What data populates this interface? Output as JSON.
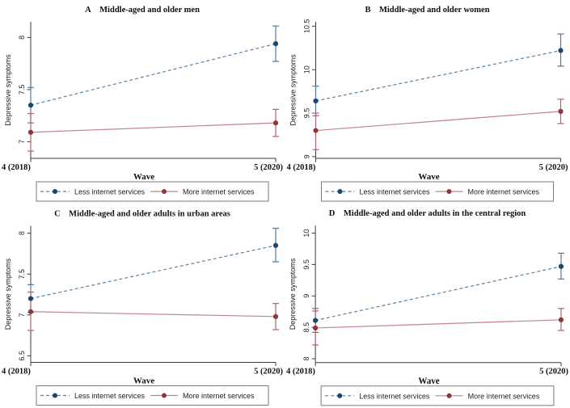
{
  "figure": {
    "background": "#ffffff",
    "legend_labels": [
      "Less internet services",
      "More internet services"
    ],
    "colors": {
      "less_marker": "#1a476f",
      "less_line": "#5d82a1",
      "less_ci": "#54789a",
      "more_marker": "#90353b",
      "more_line": "#c2848b",
      "more_ci": "#b4626d",
      "axis": "#3c3c3c"
    }
  },
  "chart_data": [
    {
      "type": "line",
      "panel_label": "A",
      "title": "Middle-aged and older men",
      "xlabel": "Wave",
      "ylabel": "Depressive symptoms",
      "x": [
        "4 (2018)",
        "5 (2020)"
      ],
      "ylim": [
        6.84,
        8.15
      ],
      "yticks": [
        7,
        7.5,
        8
      ],
      "grid": false,
      "legend_position": "bottom",
      "series": [
        {
          "name": "Less internet services",
          "style": "dashed",
          "marker_color": "#1a476f",
          "line_color": "#5d82a1",
          "ci_color": "#54789a",
          "values": [
            7.35,
            7.94
          ],
          "ci_low": [
            7.18,
            7.77
          ],
          "ci_high": [
            7.52,
            8.11
          ]
        },
        {
          "name": "More internet services",
          "style": "solid",
          "marker_color": "#90353b",
          "line_color": "#c2848b",
          "ci_color": "#b4626d",
          "values": [
            7.09,
            7.18
          ],
          "ci_low": [
            6.91,
            7.05
          ],
          "ci_high": [
            7.27,
            7.31
          ]
        }
      ]
    },
    {
      "type": "line",
      "panel_label": "B",
      "title": "Middle-aged and older women",
      "xlabel": "Wave",
      "ylabel": "Depressive symptoms",
      "x": [
        "4 (2018)",
        "5 (2020)"
      ],
      "ylim": [
        8.98,
        10.55
      ],
      "yticks": [
        9,
        9.5,
        10,
        10.5
      ],
      "grid": false,
      "legend_position": "bottom",
      "series": [
        {
          "name": "Less internet services",
          "style": "dashed",
          "marker_color": "#1a476f",
          "line_color": "#5d82a1",
          "ci_color": "#54789a",
          "values": [
            9.64,
            10.22
          ],
          "ci_low": [
            9.47,
            10.04
          ],
          "ci_high": [
            9.81,
            10.41
          ]
        },
        {
          "name": "More internet services",
          "style": "solid",
          "marker_color": "#90353b",
          "line_color": "#c2848b",
          "ci_color": "#b4626d",
          "values": [
            9.3,
            9.52
          ],
          "ci_low": [
            9.08,
            9.38
          ],
          "ci_high": [
            9.5,
            9.66
          ]
        }
      ]
    },
    {
      "type": "line",
      "panel_label": "C",
      "title": "Middle-aged and older adults in urban areas",
      "xlabel": "Wave",
      "ylabel": "Depressive symptoms",
      "x": [
        "4 (2018)",
        "5 (2020)"
      ],
      "ylim": [
        6.42,
        8.09
      ],
      "yticks": [
        6.5,
        7,
        7.5,
        8
      ],
      "grid": false,
      "legend_position": "bottom",
      "series": [
        {
          "name": "Less internet services",
          "style": "dashed",
          "marker_color": "#1a476f",
          "line_color": "#5d82a1",
          "ci_color": "#54789a",
          "values": [
            7.2,
            7.85
          ],
          "ci_low": [
            7.03,
            7.65
          ],
          "ci_high": [
            7.37,
            8.06
          ]
        },
        {
          "name": "More internet services",
          "style": "solid",
          "marker_color": "#90353b",
          "line_color": "#c2848b",
          "ci_color": "#b4626d",
          "values": [
            7.04,
            6.98
          ],
          "ci_low": [
            6.81,
            6.82
          ],
          "ci_high": [
            7.28,
            7.14
          ]
        }
      ]
    },
    {
      "type": "line",
      "panel_label": "D",
      "title": "Middle-aged and older adults in the central region",
      "xlabel": "Wave",
      "ylabel": "Depressive symptoms",
      "x": [
        "4 (2018)",
        "5 (2020)"
      ],
      "ylim": [
        7.94,
        10.12
      ],
      "yticks": [
        8,
        8.5,
        9,
        9.5,
        10
      ],
      "grid": false,
      "legend_position": "bottom",
      "series": [
        {
          "name": "Less internet services",
          "style": "dashed",
          "marker_color": "#1a476f",
          "line_color": "#5d82a1",
          "ci_color": "#54789a",
          "values": [
            8.61,
            9.47
          ],
          "ci_low": [
            8.42,
            9.27
          ],
          "ci_high": [
            8.8,
            9.68
          ]
        },
        {
          "name": "More internet services",
          "style": "solid",
          "marker_color": "#90353b",
          "line_color": "#c2848b",
          "ci_color": "#b4626d",
          "values": [
            8.49,
            8.62
          ],
          "ci_low": [
            8.22,
            8.45
          ],
          "ci_high": [
            8.76,
            8.8
          ]
        }
      ]
    }
  ]
}
